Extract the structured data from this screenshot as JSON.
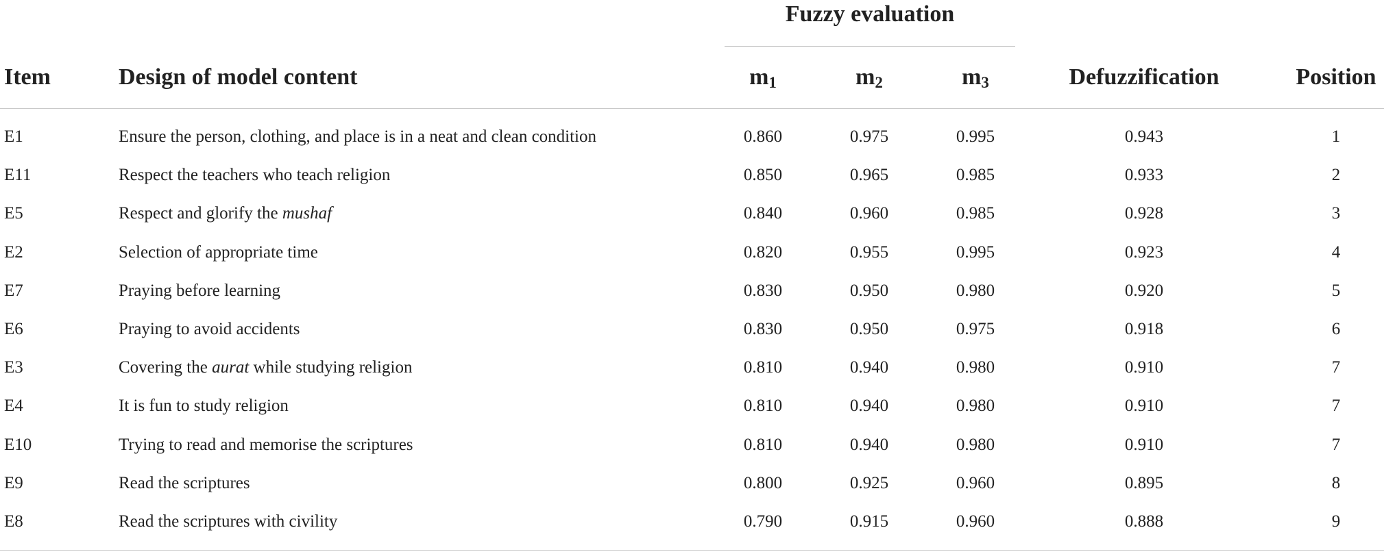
{
  "table": {
    "group_header": "Fuzzy evaluation",
    "headers": {
      "item": "Item",
      "design": "Design of model content",
      "m1": {
        "base": "m",
        "sub": "1"
      },
      "m2": {
        "base": "m",
        "sub": "2"
      },
      "m3": {
        "base": "m",
        "sub": "3"
      },
      "defuzz": "Defuzzification",
      "position": "Position"
    },
    "rows": [
      {
        "item": "E1",
        "design": [
          {
            "t": "Ensure the person, clothing, and place is in a neat and clean condition"
          }
        ],
        "m1": "0.860",
        "m2": "0.975",
        "m3": "0.995",
        "defuzz": "0.943",
        "position": "1"
      },
      {
        "item": "E11",
        "design": [
          {
            "t": "Respect the teachers who teach religion"
          }
        ],
        "m1": "0.850",
        "m2": "0.965",
        "m3": "0.985",
        "defuzz": "0.933",
        "position": "2"
      },
      {
        "item": "E5",
        "design": [
          {
            "t": "Respect and glorify the "
          },
          {
            "t": "mushaf",
            "i": true
          }
        ],
        "m1": "0.840",
        "m2": "0.960",
        "m3": "0.985",
        "defuzz": "0.928",
        "position": "3"
      },
      {
        "item": "E2",
        "design": [
          {
            "t": "Selection of appropriate time"
          }
        ],
        "m1": "0.820",
        "m2": "0.955",
        "m3": "0.995",
        "defuzz": "0.923",
        "position": "4"
      },
      {
        "item": "E7",
        "design": [
          {
            "t": "Praying before learning"
          }
        ],
        "m1": "0.830",
        "m2": "0.950",
        "m3": "0.980",
        "defuzz": "0.920",
        "position": "5"
      },
      {
        "item": "E6",
        "design": [
          {
            "t": "Praying to avoid accidents"
          }
        ],
        "m1": "0.830",
        "m2": "0.950",
        "m3": "0.975",
        "defuzz": "0.918",
        "position": "6"
      },
      {
        "item": "E3",
        "design": [
          {
            "t": "Covering the "
          },
          {
            "t": "aurat",
            "i": true
          },
          {
            "t": " while studying religion"
          }
        ],
        "m1": "0.810",
        "m2": "0.940",
        "m3": "0.980",
        "defuzz": "0.910",
        "position": "7"
      },
      {
        "item": "E4",
        "design": [
          {
            "t": "It is fun to study religion"
          }
        ],
        "m1": "0.810",
        "m2": "0.940",
        "m3": "0.980",
        "defuzz": "0.910",
        "position": "7"
      },
      {
        "item": "E10",
        "design": [
          {
            "t": "Trying to read and memorise the scriptures"
          }
        ],
        "m1": "0.810",
        "m2": "0.940",
        "m3": "0.980",
        "defuzz": "0.910",
        "position": "7"
      },
      {
        "item": "E9",
        "design": [
          {
            "t": "Read the scriptures"
          }
        ],
        "m1": "0.800",
        "m2": "0.925",
        "m3": "0.960",
        "defuzz": "0.895",
        "position": "8"
      },
      {
        "item": "E8",
        "design": [
          {
            "t": "Read the scriptures with civility"
          }
        ],
        "m1": "0.790",
        "m2": "0.915",
        "m3": "0.960",
        "defuzz": "0.888",
        "position": "9"
      }
    ]
  }
}
